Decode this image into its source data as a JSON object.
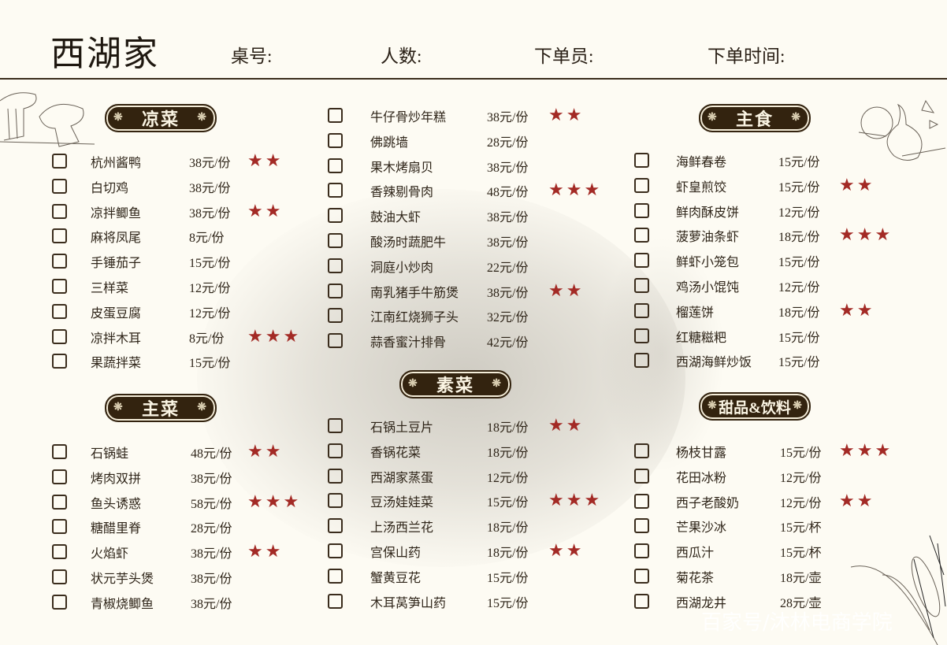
{
  "header": {
    "title": "西湖家",
    "fields": [
      "桌号:",
      "人数:",
      "下单员:",
      "下单时间:"
    ]
  },
  "colors": {
    "star": "#a32a25",
    "badge": "#33230f",
    "background": "#fdfbf3"
  },
  "sections": [
    {
      "id": "liangcai",
      "title": "凉菜",
      "items": [
        {
          "name": "杭州酱鸭",
          "price": "38元/份",
          "stars": 2
        },
        {
          "name": "白切鸡",
          "price": "38元/份",
          "stars": 0
        },
        {
          "name": "凉拌鲫鱼",
          "price": "38元/份",
          "stars": 2
        },
        {
          "name": "麻将凤尾",
          "price": "8元/份",
          "stars": 0
        },
        {
          "name": "手锤茄子",
          "price": "15元/份",
          "stars": 0
        },
        {
          "name": "三样菜",
          "price": "12元/份",
          "stars": 0
        },
        {
          "name": "皮蛋豆腐",
          "price": "12元/份",
          "stars": 0
        },
        {
          "name": "凉拌木耳",
          "price": "8元/份",
          "stars": 3
        },
        {
          "name": "果蔬拌菜",
          "price": "15元/份",
          "stars": 0
        }
      ]
    },
    {
      "id": "zhucai",
      "title": "主菜",
      "items": [
        {
          "name": "石锅蛙",
          "price": "48元/份",
          "stars": 2
        },
        {
          "name": "烤肉双拼",
          "price": "38元/份",
          "stars": 0
        },
        {
          "name": "鱼头诱惑",
          "price": "58元/份",
          "stars": 3
        },
        {
          "name": "糖醋里脊",
          "price": "28元/份",
          "stars": 0
        },
        {
          "name": "火焰虾",
          "price": "38元/份",
          "stars": 2
        },
        {
          "name": "状元芋头煲",
          "price": "38元/份",
          "stars": 0
        },
        {
          "name": "青椒烧鲫鱼",
          "price": "38元/份",
          "stars": 0
        }
      ]
    },
    {
      "id": "zhucai-cont",
      "title": "",
      "items": [
        {
          "name": "牛仔骨炒年糕",
          "price": "38元/份",
          "stars": 2
        },
        {
          "name": "佛跳墙",
          "price": "28元/份",
          "stars": 0
        },
        {
          "name": "果木烤扇贝",
          "price": "38元/份",
          "stars": 0
        },
        {
          "name": "香辣剔骨肉",
          "price": "48元/份",
          "stars": 3
        },
        {
          "name": "鼓油大虾",
          "price": "38元/份",
          "stars": 0
        },
        {
          "name": "酸汤时蔬肥牛",
          "price": "38元/份",
          "stars": 0
        },
        {
          "name": "洞庭小炒肉",
          "price": "22元/份",
          "stars": 0
        },
        {
          "name": "南乳猪手牛筋煲",
          "price": "38元/份",
          "stars": 2
        },
        {
          "name": "江南红烧狮子头",
          "price": "32元/份",
          "stars": 0
        },
        {
          "name": "蒜香蜜汁排骨",
          "price": "42元/份",
          "stars": 0
        }
      ]
    },
    {
      "id": "sucai",
      "title": "素菜",
      "items": [
        {
          "name": "石锅土豆片",
          "price": "18元/份",
          "stars": 2
        },
        {
          "name": "香锅花菜",
          "price": "18元/份",
          "stars": 0
        },
        {
          "name": "西湖家蒸蛋",
          "price": "12元/份",
          "stars": 0
        },
        {
          "name": "豆汤娃娃菜",
          "price": "15元/份",
          "stars": 3
        },
        {
          "name": "上汤西兰花",
          "price": "18元/份",
          "stars": 0
        },
        {
          "name": "宫保山药",
          "price": "18元/份",
          "stars": 2
        },
        {
          "name": "蟹黄豆花",
          "price": "15元/份",
          "stars": 0
        },
        {
          "name": "木耳莴笋山药",
          "price": "15元/份",
          "stars": 0
        }
      ]
    },
    {
      "id": "zhushi",
      "title": "主食",
      "items": [
        {
          "name": "海鲜春卷",
          "price": "15元/份",
          "stars": 0
        },
        {
          "name": "虾皇煎饺",
          "price": "15元/份",
          "stars": 2
        },
        {
          "name": "鲜肉酥皮饼",
          "price": "12元/份",
          "stars": 0
        },
        {
          "name": "菠萝油条虾",
          "price": "18元/份",
          "stars": 3
        },
        {
          "name": "鲜虾小笼包",
          "price": "15元/份",
          "stars": 0
        },
        {
          "name": "鸡汤小馄饨",
          "price": "12元/份",
          "stars": 0
        },
        {
          "name": "榴莲饼",
          "price": "18元/份",
          "stars": 2
        },
        {
          "name": "红糖糍粑",
          "price": "15元/份",
          "stars": 0
        },
        {
          "name": "西湖海鲜炒饭",
          "price": "15元/份",
          "stars": 0
        }
      ]
    },
    {
      "id": "tianpin",
      "title": "甜品&饮料",
      "items": [
        {
          "name": "杨枝甘露",
          "price": "15元/份",
          "stars": 3
        },
        {
          "name": "花田冰粉",
          "price": "12元/份",
          "stars": 0
        },
        {
          "name": "西子老酸奶",
          "price": "12元/份",
          "stars": 2
        },
        {
          "name": "芒果沙冰",
          "price": "15元/杯",
          "stars": 0
        },
        {
          "name": "西瓜汁",
          "price": "15元/杯",
          "stars": 0
        },
        {
          "name": "菊花茶",
          "price": "18元/壶",
          "stars": 0
        },
        {
          "name": "西湖龙井",
          "price": "28元/壶",
          "stars": 0
        }
      ]
    }
  ],
  "watermark": "百家号/沐林电商学院"
}
